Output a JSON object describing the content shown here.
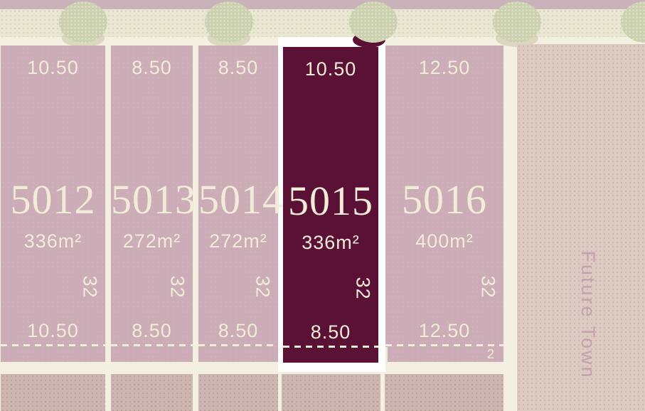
{
  "scene": {
    "type": "estate-masterplan-lot-map",
    "street_area_label": "Future Town",
    "colors": {
      "background_road": "#f3f0e2",
      "road_band": "#e9e7d3",
      "top_strip": "#c9b2b9",
      "lot_fill": "#cbacb7",
      "lot_highlight_fill": "#5b1036",
      "highlight_outline": "#ffffff",
      "text_cream": "#f1ecd8",
      "tree_fill": "#cbd0ae",
      "lower_lot_fill": "#cdb6b2",
      "future_block_fill": "#dccac3",
      "future_text": "#c2a2ad"
    },
    "tree_count": 5
  },
  "lots": [
    {
      "number": "5012",
      "area": "336m²",
      "width_top": "10.50",
      "width_bottom": "10.50",
      "depth": "32",
      "highlighted": false
    },
    {
      "number": "5013",
      "area": "272m²",
      "width_top": "8.50",
      "width_bottom": "8.50",
      "depth": "32",
      "highlighted": false
    },
    {
      "number": "5014",
      "area": "272m²",
      "width_top": "8.50",
      "width_bottom": "8.50",
      "depth": "32",
      "highlighted": false
    },
    {
      "number": "5015",
      "area": "336m²",
      "width_top": "10.50",
      "width_bottom": "8.50",
      "depth": "32",
      "highlighted": true
    },
    {
      "number": "5016",
      "area": "400m²",
      "width_top": "12.50",
      "width_bottom": "12.50",
      "depth": "32",
      "highlighted": false,
      "corner_label": "2"
    }
  ],
  "right_area": {
    "label": "Future Town"
  }
}
